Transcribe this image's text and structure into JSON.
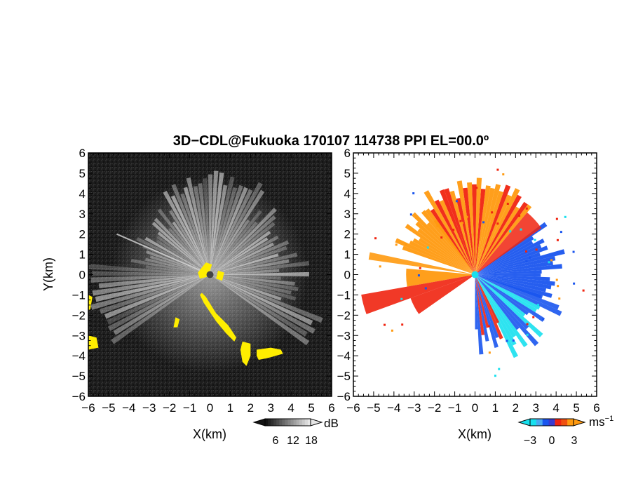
{
  "title": "3D−CDL@Fukuoka 170107 114738 PPI EL=00.0º",
  "chart_data": [
    {
      "type": "heatmap",
      "panel": "left",
      "quantity": "backscatter intensity (SNR)",
      "xlabel": "X(km)",
      "ylabel": "Y(km)",
      "xlim": [
        -6,
        6
      ],
      "ylim": [
        -6,
        6
      ],
      "xticks": [
        "−6",
        "−5",
        "−4",
        "−3",
        "−2",
        "−1",
        "0",
        "1",
        "2",
        "3",
        "4",
        "5",
        "6"
      ],
      "yticks": [
        "6",
        "5",
        "4",
        "3",
        "2",
        "1",
        "0",
        "−1",
        "−2",
        "−3",
        "−4",
        "−5",
        "−6"
      ],
      "colormap": "grayscale",
      "background_color": "#1c1c1c",
      "saturation_color": "#ffee00",
      "colorbar": {
        "ticks": [
          "6",
          "12",
          "18"
        ],
        "unit": "dB"
      }
    },
    {
      "type": "heatmap",
      "panel": "right",
      "quantity": "Doppler velocity",
      "xlabel": "X(km)",
      "xlim": [
        -6,
        6
      ],
      "ylim": [
        -6,
        6
      ],
      "xticks": [
        "−6",
        "−5",
        "−4",
        "−3",
        "−2",
        "−1",
        "0",
        "1",
        "2",
        "3",
        "4",
        "5",
        "6"
      ],
      "yticks": [
        "6",
        "5",
        "4",
        "3",
        "2",
        "1",
        "0",
        "−1",
        "−2",
        "−3",
        "−4",
        "−5",
        "−6"
      ],
      "colormap": "cyan-blue-red-orange",
      "colors": {
        "cyan": "#17e0ee",
        "blue": "#1a55ee",
        "red": "#f02410",
        "orange": "#ff9a10"
      },
      "colorbar": {
        "ticks": [
          "−3",
          "0",
          "3"
        ],
        "unit": "ms",
        "unit_exp": "−1"
      }
    }
  ]
}
